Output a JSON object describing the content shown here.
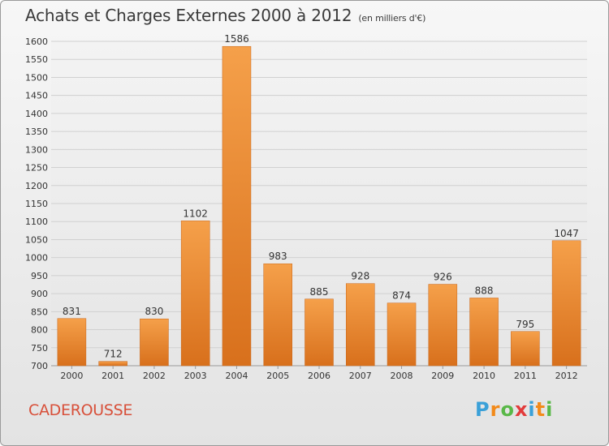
{
  "title": "Achats et Charges Externes 2000 à 2012",
  "subtitle": "(en milliers d'€)",
  "city": "CADEROUSSE",
  "logo": {
    "letters": [
      "P",
      "r",
      "o",
      "x",
      "i",
      "t",
      "i"
    ],
    "colors": [
      "#3aa0d8",
      "#f28a1a",
      "#59b848",
      "#e23b3b",
      "#3aa0d8",
      "#f28a1a",
      "#59b848"
    ]
  },
  "colors": {
    "bar_light": "#f5a04a",
    "bar_dark": "#d8701c",
    "grid": "#d0d0d0",
    "city": "#d8503a"
  },
  "chart_data": {
    "type": "bar",
    "title": "Achats et Charges Externes 2000 à 2012",
    "subtitle": "(en milliers d'€)",
    "categories": [
      "2000",
      "2001",
      "2002",
      "2003",
      "2004",
      "2005",
      "2006",
      "2007",
      "2008",
      "2009",
      "2010",
      "2011",
      "2012"
    ],
    "values": [
      831,
      712,
      830,
      1102,
      1586,
      983,
      885,
      928,
      874,
      926,
      888,
      795,
      1047
    ],
    "ylim": [
      700,
      1600
    ],
    "yticks": [
      700,
      750,
      800,
      850,
      900,
      950,
      1000,
      1050,
      1100,
      1150,
      1200,
      1250,
      1300,
      1350,
      1400,
      1450,
      1500,
      1550,
      1600
    ],
    "grid": true,
    "xlabel": "",
    "ylabel": ""
  }
}
